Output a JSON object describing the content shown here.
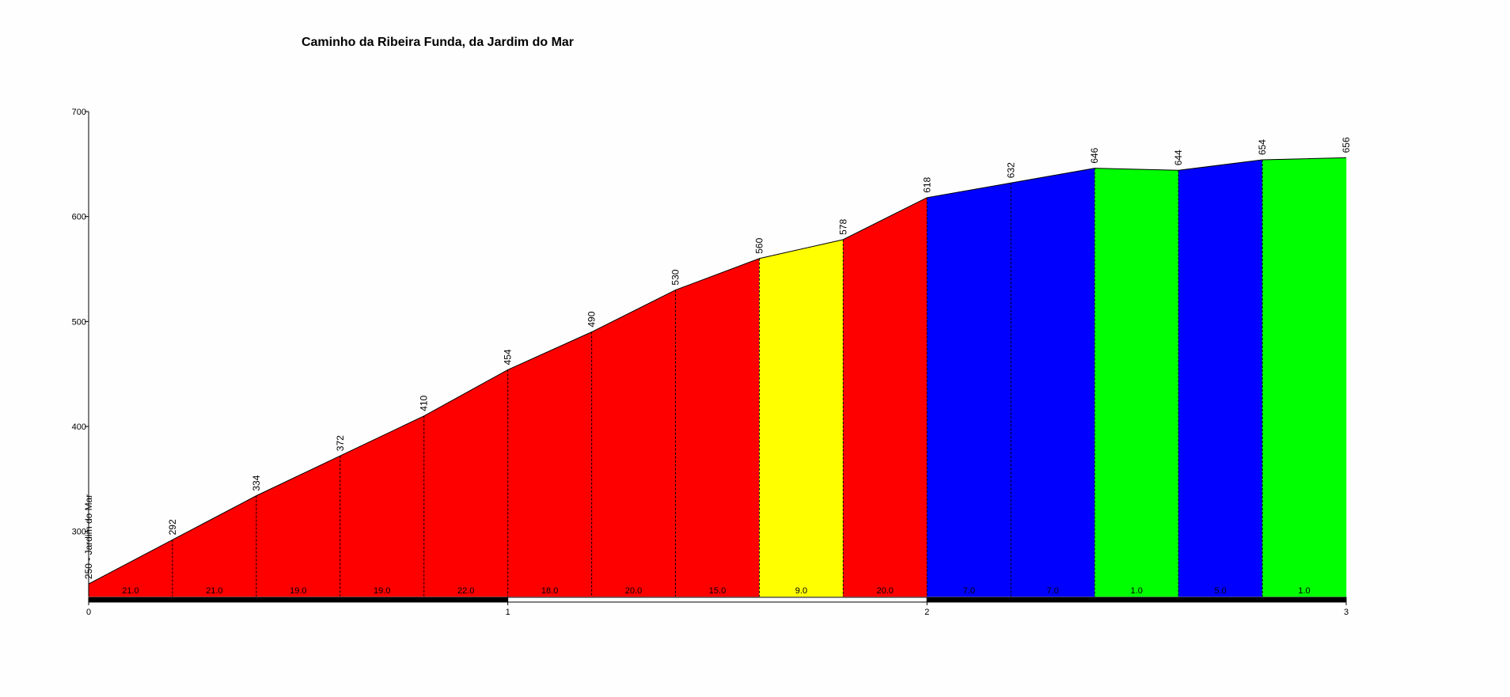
{
  "chart_data": {
    "type": "profile",
    "title": "Caminho da Ribeira Funda, da Jardim do Mar",
    "x": [
      0,
      0.2,
      0.4,
      0.6,
      0.8,
      1.0,
      1.2,
      1.4,
      1.6,
      1.8,
      2.0,
      2.2,
      2.4,
      2.6,
      2.8,
      3.0
    ],
    "values": [
      250,
      292,
      334,
      372,
      410,
      454,
      490,
      530,
      560,
      578,
      618,
      632,
      646,
      644,
      654,
      656
    ],
    "value_labels": [
      "250 - Jardim do Mar",
      "292",
      "334",
      "372",
      "410",
      "454",
      "490",
      "530",
      "560",
      "578",
      "618",
      "632",
      "646",
      "644",
      "654",
      "656"
    ],
    "gradients": [
      21,
      21,
      19,
      19,
      22,
      18,
      20,
      15,
      9,
      20,
      7,
      7,
      1,
      5,
      1
    ],
    "gradient_labels": [
      "21.0",
      "21.0",
      "19.0",
      "19.0",
      "22.0",
      "18.0",
      "20.0",
      "15.0",
      "9.0",
      "20.0",
      "7.0",
      "7.0",
      "1.0",
      "5.0",
      "1.0"
    ],
    "segment_colors": [
      "#ff0000",
      "#ff0000",
      "#ff0000",
      "#ff0000",
      "#ff0000",
      "#ff0000",
      "#ff0000",
      "#ff0000",
      "#ffff00",
      "#ff0000",
      "#0000ff",
      "#0000ff",
      "#00ff00",
      "#0000ff",
      "#00ff00"
    ],
    "xlim": [
      0,
      3
    ],
    "xticks": [
      0,
      1,
      2,
      3
    ],
    "ylim": [
      238,
      700
    ],
    "yticks": [
      300,
      400,
      500,
      600,
      700
    ]
  }
}
